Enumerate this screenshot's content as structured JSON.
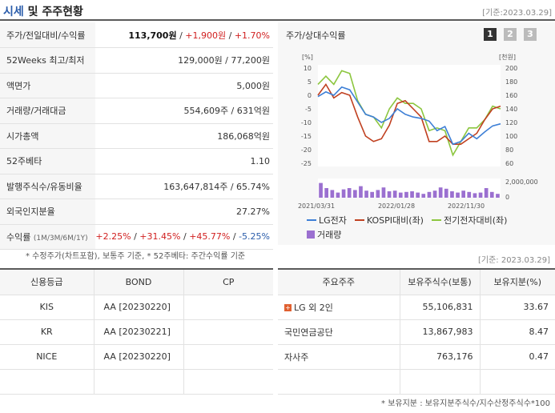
{
  "header": {
    "title_highlight": "시세",
    "title_rest": "및 주주현황",
    "date": "[기준:2023.03.29]"
  },
  "price_table": {
    "rows": [
      {
        "label": "주가/전일대비/수익률",
        "price": "113,700원",
        "sep1": " / ",
        "change": "+1,900원",
        "sep2": " / ",
        "rate": "+1.70%"
      },
      {
        "label": "52Weeks 최고/최저",
        "value": "129,000원 / 77,200원"
      },
      {
        "label": "액면가",
        "value": "5,000원"
      },
      {
        "label": "거래량/거래대금",
        "value": "554,609주 / 631억원"
      },
      {
        "label": "시가총액",
        "value": "186,068억원"
      },
      {
        "label": "52주베타",
        "value": "1.10"
      },
      {
        "label": "발행주식수/유동비율",
        "value": "163,647,814주 / 65.74%"
      },
      {
        "label": "외국인지분율",
        "value": "27.27%"
      },
      {
        "label": "수익률",
        "label_sub": "(1M/3M/6M/1Y)",
        "r1": "+2.25%",
        "r2": "+31.45%",
        "r3": "+45.77%",
        "r4": "-5.25%",
        "sep": "/"
      }
    ],
    "note": "* 수정주가(차트포함), 보통주 기준, * 52주베타: 주간수익률 기준"
  },
  "chart": {
    "title": "주가/상대수익률",
    "pages": [
      "1",
      "2",
      "3"
    ],
    "left_unit": "[%]",
    "right_unit": "[천원]",
    "volume_label": "2,000,000",
    "volume_zero": "0",
    "legend": {
      "lg": "LG전자",
      "kospi": "KOSPI대비(좌)",
      "samsung": "전기전자대비(좌)",
      "volume": "거래량"
    },
    "colors": {
      "lg": "#3d7fd6",
      "kospi": "#c04020",
      "samsung": "#8cc63f",
      "volume": "#9b70d0"
    }
  },
  "chart_data": {
    "type": "line",
    "x_ticks": [
      "2021/03/31",
      "2022/01/28",
      "2022/11/30"
    ],
    "y_left_ticks": [
      10,
      5,
      0,
      -5,
      -10,
      -15,
      -20,
      -25
    ],
    "y_left_range": [
      -25,
      10
    ],
    "y_right_ticks": [
      200,
      180,
      160,
      140,
      120,
      100,
      80,
      60
    ],
    "y_right_range": [
      60,
      200
    ],
    "series": [
      {
        "name": "LG전자",
        "axis": "right",
        "values": [
          158,
          165,
          160,
          172,
          168,
          150,
          132,
          128,
          120,
          126,
          140,
          132,
          128,
          126,
          122,
          108,
          114,
          88,
          92,
          104,
          96,
          106,
          115,
          118
        ]
      },
      {
        "name": "KOSPI대비(좌)",
        "axis": "left",
        "values": [
          0,
          4,
          -1,
          1,
          0,
          -8,
          -15,
          -17,
          -16,
          -11,
          -3,
          -2,
          -5,
          -8,
          -17,
          -17,
          -15,
          -18,
          -18,
          -16,
          -14,
          -9,
          -5,
          -4
        ]
      },
      {
        "name": "전기전자대비(좌)",
        "axis": "left",
        "values": [
          4,
          7,
          4,
          9,
          8,
          -2,
          -7,
          -8,
          -12,
          -5,
          -1,
          -3,
          -3,
          -5,
          -13,
          -12,
          -13,
          -22,
          -17,
          -12,
          -12,
          -9,
          -4,
          -5
        ]
      },
      {
        "name": "거래량",
        "axis": "volume",
        "type": "bar",
        "values": [
          2.3,
          1.5,
          1.2,
          0.8,
          1.3,
          1.5,
          1.2,
          1.8,
          1.1,
          0.9,
          1.2,
          1.6,
          1.0,
          1.1,
          0.8,
          0.9,
          1.0,
          0.8,
          0.6,
          0.9,
          1.1,
          1.6,
          1.4,
          1.0,
          0.8,
          1.1,
          0.9,
          0.7,
          0.8,
          1.5,
          0.9,
          0.6
        ]
      }
    ],
    "volume_range": [
      0,
      2.5
    ]
  },
  "credit_date": "[기준: 2023.03.29]",
  "credit_table": {
    "headers": [
      "신용등급",
      "BOND",
      "CP"
    ],
    "rows": [
      {
        "agency": "KIS",
        "bond": "AA   [20230220]",
        "cp": ""
      },
      {
        "agency": "KR",
        "bond": "AA   [20230221]",
        "cp": ""
      },
      {
        "agency": "NICE",
        "bond": "AA   [20230220]",
        "cp": ""
      }
    ]
  },
  "holders_table": {
    "headers": [
      "주요주주",
      "보유주식수(보통)",
      "보유지분(%)"
    ],
    "rows": [
      {
        "name": "LG 외 2인",
        "shares": "55,106,831",
        "pct": "33.67"
      },
      {
        "name": "국민연금공단",
        "shares": "13,867,983",
        "pct": "8.47"
      },
      {
        "name": "자사주",
        "shares": "763,176",
        "pct": "0.47"
      }
    ],
    "note": "* 보유지분 : 보유지분주식수/지수산정주식수*100"
  }
}
